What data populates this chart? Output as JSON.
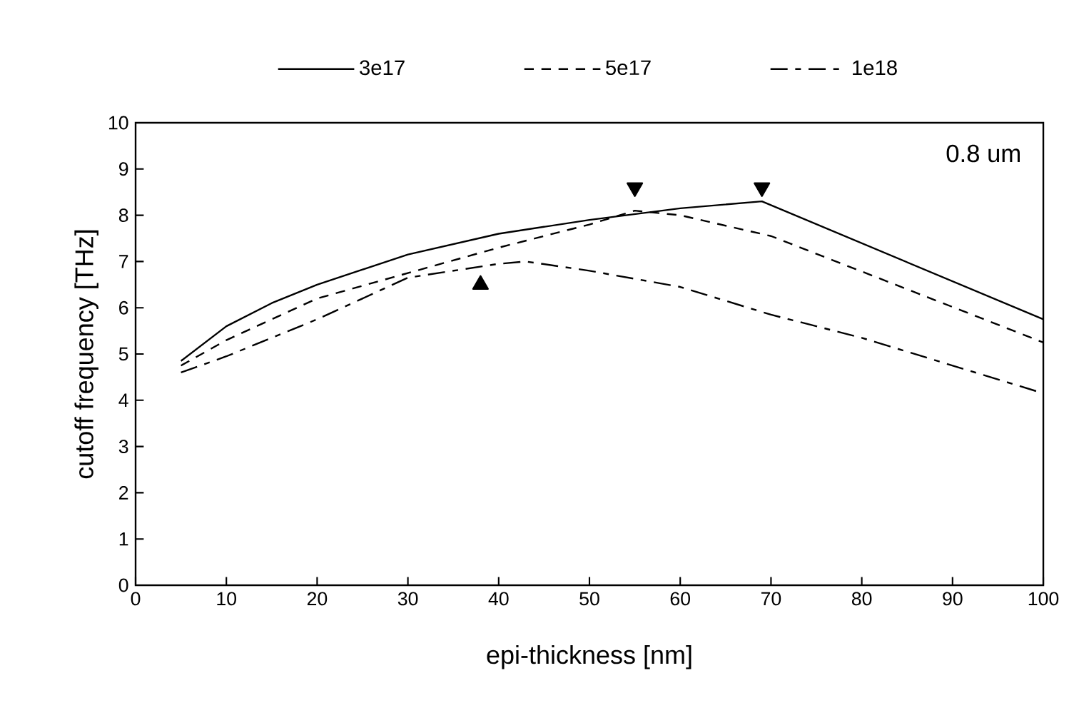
{
  "chart_data": {
    "type": "line",
    "xlabel": "epi-thickness [nm]",
    "ylabel": "cutoff frequency [THz]",
    "xlim": [
      0,
      100
    ],
    "ylim": [
      0,
      10
    ],
    "xticks": [
      0,
      10,
      20,
      30,
      40,
      50,
      60,
      70,
      80,
      90,
      100
    ],
    "yticks": [
      0,
      1,
      2,
      3,
      4,
      5,
      6,
      7,
      8,
      9,
      10
    ],
    "legend": "top",
    "grid": false,
    "marker": "none",
    "annotations": [
      "0.8 um"
    ],
    "series": [
      {
        "name": "3e17",
        "color": "#000000",
        "line_style": "solid",
        "x": [
          5,
          10,
          15,
          20,
          30,
          40,
          50,
          60,
          69,
          100
        ],
        "values": [
          4.85,
          5.6,
          6.1,
          6.5,
          7.15,
          7.6,
          7.9,
          8.15,
          8.3,
          5.75
        ]
      },
      {
        "name": "5e17",
        "color": "#000000",
        "line_style": "dashed",
        "x": [
          5,
          10,
          20,
          30,
          40,
          50,
          55,
          60,
          70,
          100
        ],
        "values": [
          4.75,
          5.3,
          6.2,
          6.75,
          7.3,
          7.8,
          8.1,
          8.0,
          7.55,
          5.25
        ]
      },
      {
        "name": "1e18",
        "color": "#000000",
        "line_style": "dashdot",
        "x": [
          5,
          10,
          20,
          30,
          40,
          43,
          50,
          60,
          70,
          80,
          100
        ],
        "values": [
          4.6,
          4.95,
          5.75,
          6.65,
          6.95,
          7.0,
          6.8,
          6.45,
          5.85,
          5.35,
          4.15
        ]
      },
      {
        "type": "scatter",
        "color": "#000000",
        "marker": "triangle-down",
        "x": [
          55,
          69
        ],
        "values": [
          8.6,
          8.6
        ]
      },
      {
        "type": "scatter",
        "color": "#000000",
        "marker": "triangle",
        "x": [
          38
        ],
        "values": [
          6.5
        ]
      }
    ]
  }
}
